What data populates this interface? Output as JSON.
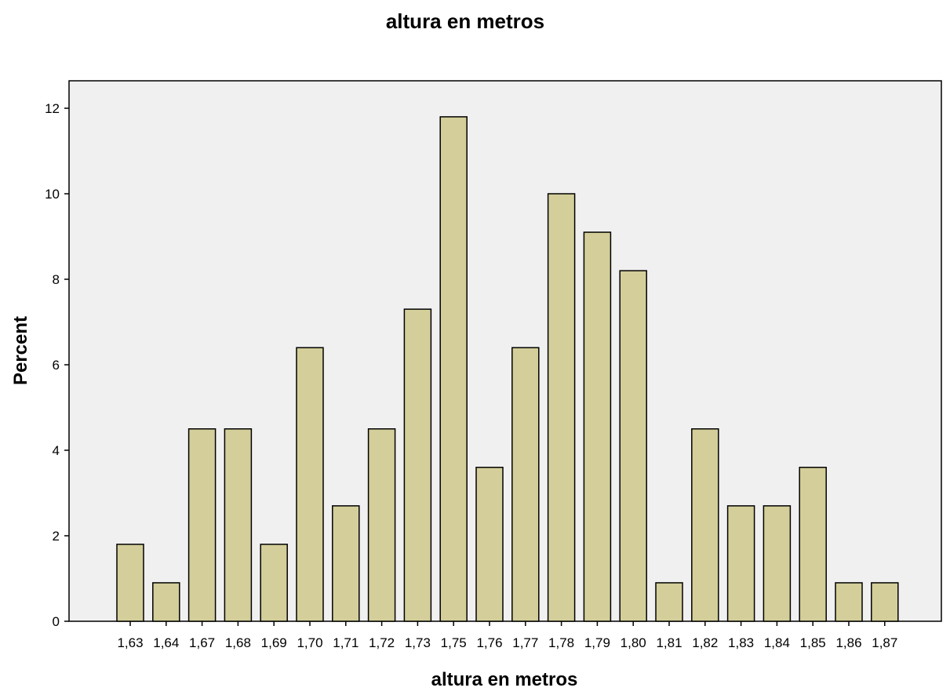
{
  "chart_data": {
    "type": "bar",
    "title": "altura en metros",
    "xlabel": "altura en metros",
    "ylabel": "Percent",
    "ylim": [
      0,
      13
    ],
    "yticks": [
      0,
      2,
      4,
      6,
      8,
      10,
      12
    ],
    "grid": false,
    "categories": [
      "1,63",
      "1,64",
      "1,67",
      "1,68",
      "1,69",
      "1,70",
      "1,71",
      "1,72",
      "1,73",
      "1,75",
      "1,76",
      "1,77",
      "1,78",
      "1,79",
      "1,80",
      "1,81",
      "1,82",
      "1,83",
      "1,84",
      "1,85",
      "1,86",
      "1,87"
    ],
    "values": [
      1.8,
      0.9,
      4.5,
      4.5,
      1.8,
      6.4,
      2.7,
      4.5,
      7.3,
      11.8,
      3.6,
      6.4,
      10.0,
      9.1,
      8.2,
      0.9,
      4.5,
      2.7,
      2.7,
      3.6,
      0.9,
      0.9
    ],
    "colors": {
      "bar_fill": "#d4cf9a",
      "bar_stroke": "#000000",
      "plot_bg": "#f0f0f0"
    }
  }
}
